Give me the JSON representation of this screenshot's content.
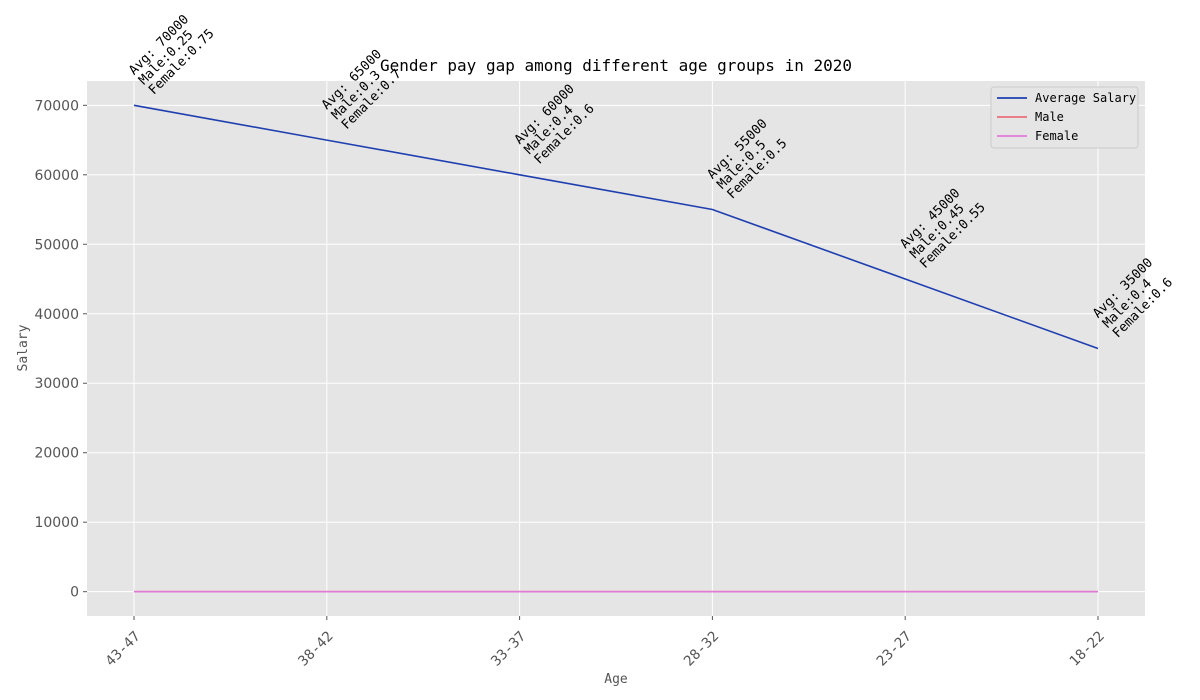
{
  "chart_data": {
    "type": "line",
    "title": "Gender pay gap among different age groups in 2020",
    "xlabel": "Age",
    "ylabel": "Salary",
    "categories": [
      "43-47",
      "38-42",
      "33-37",
      "28-32",
      "23-27",
      "18-22"
    ],
    "ylim": [
      -3500,
      73500
    ],
    "yticks": [
      0,
      10000,
      20000,
      30000,
      40000,
      50000,
      60000,
      70000
    ],
    "ytick_labels": [
      "0",
      "10000",
      "20000",
      "30000",
      "40000",
      "50000",
      "60000",
      "70000"
    ],
    "grid": true,
    "legend_position": "top-right",
    "series": [
      {
        "name": "Average Salary",
        "color": "#1f3fb0",
        "values": [
          70000,
          65000,
          60000,
          55000,
          45000,
          35000
        ]
      },
      {
        "name": "Male",
        "color": "#e8707a",
        "values": [
          0.25,
          0.3,
          0.4,
          0.5,
          0.45,
          0.4
        ]
      },
      {
        "name": "Female",
        "color": "#e07ad8",
        "values": [
          0.75,
          0.7,
          0.6,
          0.5,
          0.55,
          0.6
        ]
      }
    ],
    "annotations": [
      [
        "Avg: 70000",
        "Male:0.25",
        "Female:0.75"
      ],
      [
        "Avg: 65000",
        "Male:0.3",
        "Female:0.7"
      ],
      [
        "Avg: 60000",
        "Male:0.4",
        "Female:0.6"
      ],
      [
        "Avg: 55000",
        "Male:0.5",
        "Female:0.5"
      ],
      [
        "Avg: 45000",
        "Male:0.45",
        "Female:0.55"
      ],
      [
        "Avg: 35000",
        "Male:0.4",
        "Female:0.6"
      ]
    ]
  }
}
